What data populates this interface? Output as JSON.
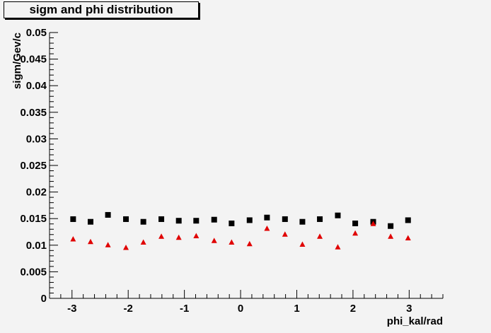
{
  "title": "sigm and phi distribution",
  "colors": {
    "background": "#f3f3f3",
    "axis": "#000000",
    "series_a": "#000000",
    "series_b": "#e00000"
  },
  "chart_data": {
    "type": "scatter",
    "title": "sigm and phi distribution",
    "xlabel": "phi_kal/rad",
    "ylabel": "sigm/Gev/c",
    "xlim": [
      -3.4,
      3.6
    ],
    "ylim": [
      0,
      0.05
    ],
    "xticks": [
      -3,
      -2,
      -1,
      0,
      1,
      2,
      3
    ],
    "xtick_labels": [
      "-3",
      "-2",
      "-1",
      "0",
      "1",
      "2",
      "3"
    ],
    "yticks": [
      0,
      0.005,
      0.01,
      0.015,
      0.02,
      0.025,
      0.03,
      0.035,
      0.04,
      0.045,
      0.05
    ],
    "ytick_labels": [
      "0",
      "0.005",
      "0.01",
      "0.015",
      "0.02",
      "0.025",
      "0.03",
      "0.035",
      "0.04",
      "0.045",
      "0.05"
    ],
    "grid": false,
    "series": [
      {
        "marker": "square",
        "color": "#000000",
        "x": [
          -2.98,
          -2.67,
          -2.36,
          -2.04,
          -1.73,
          -1.41,
          -1.1,
          -0.79,
          -0.47,
          -0.16,
          0.16,
          0.47,
          0.79,
          1.1,
          1.41,
          1.73,
          2.04,
          2.36,
          2.67,
          2.98
        ],
        "y": [
          0.0149,
          0.0144,
          0.0157,
          0.0149,
          0.0144,
          0.0149,
          0.0146,
          0.0146,
          0.0148,
          0.0141,
          0.0147,
          0.0152,
          0.0149,
          0.0144,
          0.0149,
          0.0156,
          0.0141,
          0.0144,
          0.0136,
          0.0147
        ]
      },
      {
        "marker": "triangle",
        "color": "#e00000",
        "x": [
          -2.98,
          -2.67,
          -2.36,
          -2.04,
          -1.73,
          -1.41,
          -1.1,
          -0.79,
          -0.47,
          -0.16,
          0.16,
          0.47,
          0.79,
          1.1,
          1.41,
          1.73,
          2.04,
          2.36,
          2.67,
          2.98
        ],
        "y": [
          0.0111,
          0.0106,
          0.01,
          0.0095,
          0.0105,
          0.0116,
          0.0114,
          0.0117,
          0.0108,
          0.0105,
          0.0102,
          0.0131,
          0.012,
          0.0101,
          0.0116,
          0.0096,
          0.0122,
          0.014,
          0.0116,
          0.0113
        ]
      }
    ]
  }
}
